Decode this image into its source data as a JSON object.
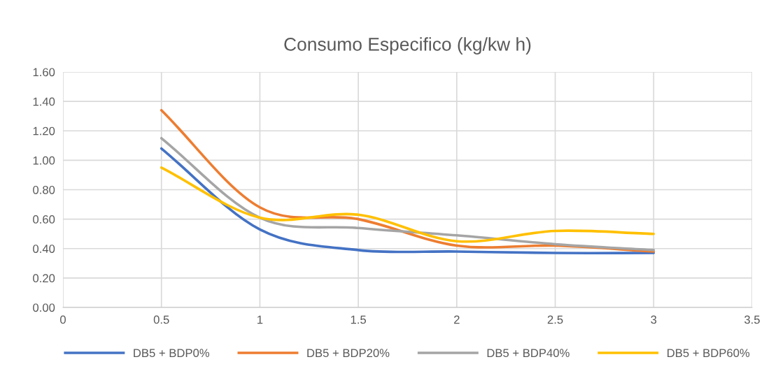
{
  "chart_data": {
    "type": "line",
    "title": "Consumo Especifico (kg/kw h)",
    "x": [
      0.5,
      1,
      1.5,
      2,
      2.5,
      3
    ],
    "series": [
      {
        "name": "DB5 + BDP0%",
        "color": "#4472c4",
        "values": [
          1.08,
          0.53,
          0.39,
          0.38,
          0.37,
          0.37
        ]
      },
      {
        "name": "DB5 + BDP20%",
        "color": "#ed7d31",
        "values": [
          1.34,
          0.68,
          0.6,
          0.42,
          0.42,
          0.38
        ]
      },
      {
        "name": "DB5 + BDP40%",
        "color": "#a5a5a5",
        "values": [
          1.15,
          0.61,
          0.54,
          0.49,
          0.43,
          0.39
        ]
      },
      {
        "name": "DB5 + BDP60%",
        "color": "#ffc000",
        "values": [
          0.95,
          0.61,
          0.63,
          0.45,
          0.52,
          0.5
        ]
      }
    ],
    "xlim": [
      0,
      3.5
    ],
    "xticks": [
      0,
      0.5,
      1,
      1.5,
      2,
      2.5,
      3,
      3.5
    ],
    "ylim": [
      0,
      1.6
    ],
    "yticks": [
      {
        "value": 0,
        "label": "0.00"
      },
      {
        "value": 0.2,
        "label": "0.20"
      },
      {
        "value": 0.4,
        "label": "0.40"
      },
      {
        "value": 0.6,
        "label": "0.60"
      },
      {
        "value": 0.8,
        "label": "0.80"
      },
      {
        "value": 1.0,
        "label": "1.00"
      },
      {
        "value": 1.2,
        "label": "1.20"
      },
      {
        "value": 1.4,
        "label": "1.40"
      },
      {
        "value": 1.6,
        "label": "1.60"
      }
    ],
    "grid": true,
    "legend": "bottom",
    "marker": "none",
    "line_style": "solid"
  }
}
